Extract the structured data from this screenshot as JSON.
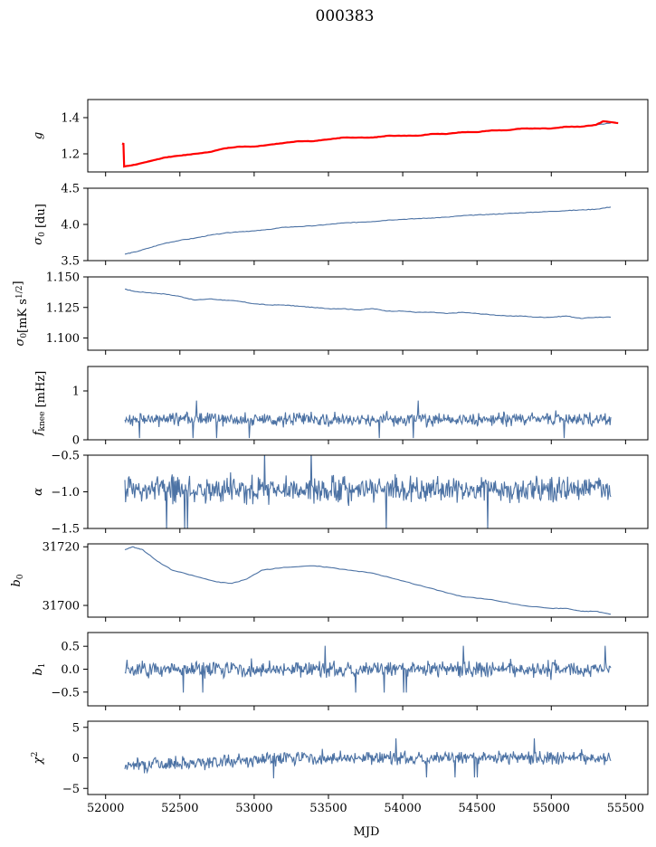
{
  "figure": {
    "title": "000383",
    "xlabel": "MJD"
  },
  "colors": {
    "series": "#4c72a4",
    "fit": "#ff0000",
    "axis": "#000000"
  },
  "chart_data": [
    {
      "type": "line",
      "ylabel": "g",
      "ylim": [
        1.1,
        1.5
      ],
      "yticks": [
        1.2,
        1.4
      ],
      "ytick_labels": [
        "1.2",
        "1.4"
      ],
      "series": [
        {
          "color": "#4c72a4",
          "values": [
            [
              52120,
              1.13
            ],
            [
              52200,
              1.14
            ],
            [
              52300,
              1.16
            ],
            [
              52400,
              1.18
            ],
            [
              52500,
              1.19
            ],
            [
              52600,
              1.2
            ],
            [
              52700,
              1.21
            ],
            [
              52800,
              1.23
            ],
            [
              52900,
              1.24
            ],
            [
              53000,
              1.24
            ],
            [
              53100,
              1.25
            ],
            [
              53200,
              1.26
            ],
            [
              53300,
              1.27
            ],
            [
              53400,
              1.27
            ],
            [
              53500,
              1.28
            ],
            [
              53600,
              1.29
            ],
            [
              53700,
              1.29
            ],
            [
              53800,
              1.29
            ],
            [
              53900,
              1.3
            ],
            [
              54000,
              1.3
            ],
            [
              54100,
              1.3
            ],
            [
              54200,
              1.31
            ],
            [
              54300,
              1.31
            ],
            [
              54400,
              1.32
            ],
            [
              54500,
              1.32
            ],
            [
              54600,
              1.33
            ],
            [
              54700,
              1.33
            ],
            [
              54800,
              1.34
            ],
            [
              54900,
              1.34
            ],
            [
              55000,
              1.34
            ],
            [
              55100,
              1.35
            ],
            [
              55200,
              1.35
            ],
            [
              55300,
              1.36
            ],
            [
              55400,
              1.37
            ]
          ]
        },
        {
          "color": "#ff0000",
          "values": [
            [
              52115,
              1.25
            ],
            [
              52120,
              1.26
            ],
            [
              52125,
              1.13
            ],
            [
              52200,
              1.14
            ],
            [
              52300,
              1.16
            ],
            [
              52400,
              1.18
            ],
            [
              52500,
              1.19
            ],
            [
              52600,
              1.2
            ],
            [
              52700,
              1.21
            ],
            [
              52800,
              1.23
            ],
            [
              52900,
              1.24
            ],
            [
              53000,
              1.24
            ],
            [
              53100,
              1.25
            ],
            [
              53200,
              1.26
            ],
            [
              53300,
              1.27
            ],
            [
              53400,
              1.27
            ],
            [
              53500,
              1.28
            ],
            [
              53600,
              1.29
            ],
            [
              53700,
              1.29
            ],
            [
              53800,
              1.29
            ],
            [
              53900,
              1.3
            ],
            [
              54000,
              1.3
            ],
            [
              54100,
              1.3
            ],
            [
              54200,
              1.31
            ],
            [
              54300,
              1.31
            ],
            [
              54400,
              1.32
            ],
            [
              54500,
              1.32
            ],
            [
              54600,
              1.33
            ],
            [
              54700,
              1.33
            ],
            [
              54800,
              1.34
            ],
            [
              54900,
              1.34
            ],
            [
              55000,
              1.34
            ],
            [
              55100,
              1.35
            ],
            [
              55200,
              1.35
            ],
            [
              55300,
              1.36
            ],
            [
              55350,
              1.38
            ],
            [
              55450,
              1.37
            ]
          ]
        }
      ]
    },
    {
      "type": "line",
      "ylabel": "σ0 [du]",
      "ylim": [
        3.5,
        4.5
      ],
      "yticks": [
        3.5,
        4.0,
        4.5
      ],
      "ytick_labels": [
        "3.5",
        "4.0",
        "4.5"
      ],
      "series": [
        {
          "color": "#4c72a4",
          "values": [
            [
              52130,
              3.59
            ],
            [
              52200,
              3.62
            ],
            [
              52300,
              3.68
            ],
            [
              52400,
              3.74
            ],
            [
              52500,
              3.78
            ],
            [
              52600,
              3.81
            ],
            [
              52700,
              3.85
            ],
            [
              52800,
              3.88
            ],
            [
              52900,
              3.9
            ],
            [
              53000,
              3.91
            ],
            [
              53100,
              3.93
            ],
            [
              53200,
              3.96
            ],
            [
              53300,
              3.97
            ],
            [
              53400,
              3.98
            ],
            [
              53500,
              4.0
            ],
            [
              53600,
              4.02
            ],
            [
              53700,
              4.03
            ],
            [
              53800,
              4.04
            ],
            [
              53900,
              4.06
            ],
            [
              54000,
              4.07
            ],
            [
              54100,
              4.08
            ],
            [
              54200,
              4.09
            ],
            [
              54300,
              4.1
            ],
            [
              54400,
              4.12
            ],
            [
              54500,
              4.13
            ],
            [
              54600,
              4.14
            ],
            [
              54700,
              4.15
            ],
            [
              54800,
              4.16
            ],
            [
              54900,
              4.17
            ],
            [
              55000,
              4.18
            ],
            [
              55100,
              4.19
            ],
            [
              55200,
              4.2
            ],
            [
              55300,
              4.21
            ],
            [
              55400,
              4.24
            ]
          ]
        }
      ]
    },
    {
      "type": "line",
      "ylabel": "σ0[mK s^1/2]",
      "ylim": [
        1.09,
        1.15
      ],
      "yticks": [
        1.1,
        1.125,
        1.15
      ],
      "ytick_labels": [
        "1.100",
        "1.125",
        "1.150"
      ],
      "series": [
        {
          "color": "#4c72a4",
          "values": [
            [
              52130,
              1.14
            ],
            [
              52200,
              1.138
            ],
            [
              52300,
              1.137
            ],
            [
              52400,
              1.136
            ],
            [
              52500,
              1.134
            ],
            [
              52600,
              1.131
            ],
            [
              52700,
              1.132
            ],
            [
              52800,
              1.131
            ],
            [
              52900,
              1.13
            ],
            [
              53000,
              1.128
            ],
            [
              53100,
              1.127
            ],
            [
              53200,
              1.127
            ],
            [
              53300,
              1.126
            ],
            [
              53400,
              1.125
            ],
            [
              53500,
              1.124
            ],
            [
              53600,
              1.124
            ],
            [
              53700,
              1.123
            ],
            [
              53800,
              1.124
            ],
            [
              53900,
              1.122
            ],
            [
              54000,
              1.122
            ],
            [
              54100,
              1.121
            ],
            [
              54200,
              1.121
            ],
            [
              54300,
              1.12
            ],
            [
              54400,
              1.121
            ],
            [
              54500,
              1.12
            ],
            [
              54600,
              1.119
            ],
            [
              54700,
              1.118
            ],
            [
              54800,
              1.118
            ],
            [
              54900,
              1.117
            ],
            [
              55000,
              1.117
            ],
            [
              55100,
              1.118
            ],
            [
              55200,
              1.116
            ],
            [
              55300,
              1.117
            ],
            [
              55400,
              1.117
            ]
          ]
        }
      ]
    },
    {
      "type": "line",
      "ylabel": "f_knee [mHz]",
      "ylim": [
        0,
        1.5
      ],
      "yticks": [
        0,
        1
      ],
      "ytick_labels": [
        "0",
        "1"
      ],
      "series": [
        {
          "color": "#4c72a4",
          "noise": {
            "x_start": 52130,
            "x_end": 55400,
            "mean": 0.42,
            "amplitude": 0.12,
            "n": 700,
            "seed": 4
          }
        }
      ]
    },
    {
      "type": "line",
      "ylabel": "α",
      "ylim": [
        -1.5,
        -0.5
      ],
      "yticks": [
        -1.5,
        -1.0,
        -0.5
      ],
      "ytick_labels": [
        "−1.5",
        "−1.0",
        "−0.5"
      ],
      "series": [
        {
          "color": "#4c72a4",
          "noise": {
            "x_start": 52130,
            "x_end": 55400,
            "mean": -0.97,
            "amplitude": 0.17,
            "n": 700,
            "seed": 5
          }
        }
      ]
    },
    {
      "type": "line",
      "ylabel": "b0",
      "ylim": [
        31696,
        31721
      ],
      "yticks": [
        31700,
        31720
      ],
      "ytick_labels": [
        "31700",
        "31720"
      ],
      "series": [
        {
          "color": "#4c72a4",
          "values": [
            [
              52130,
              31719
            ],
            [
              52180,
              31720
            ],
            [
              52250,
              31719
            ],
            [
              52350,
              31715
            ],
            [
              52450,
              31712
            ],
            [
              52600,
              31710
            ],
            [
              52750,
              31708
            ],
            [
              52850,
              31707.5
            ],
            [
              52950,
              31709
            ],
            [
              53050,
              31712
            ],
            [
              53200,
              31713
            ],
            [
              53400,
              31713.5
            ],
            [
              53500,
              31713
            ],
            [
              53650,
              31712
            ],
            [
              53800,
              31711
            ],
            [
              53950,
              31709
            ],
            [
              54100,
              31707
            ],
            [
              54250,
              31705
            ],
            [
              54400,
              31703
            ],
            [
              54600,
              31702
            ],
            [
              54800,
              31700
            ],
            [
              55000,
              31699
            ],
            [
              55100,
              31699
            ],
            [
              55200,
              31698
            ],
            [
              55300,
              31698
            ],
            [
              55400,
              31697
            ]
          ]
        }
      ]
    },
    {
      "type": "line",
      "ylabel": "b1",
      "ylim": [
        -0.8,
        0.8
      ],
      "yticks": [
        -0.5,
        0.0,
        0.5
      ],
      "ytick_labels": [
        "−0.5",
        "0.0",
        "0.5"
      ],
      "series": [
        {
          "color": "#4c72a4",
          "noise": {
            "x_start": 52130,
            "x_end": 55400,
            "mean": 0.0,
            "amplitude": 0.16,
            "n": 700,
            "seed": 6
          }
        }
      ]
    },
    {
      "type": "line",
      "ylabel": "χ2",
      "ylim": [
        -6,
        6
      ],
      "yticks": [
        -5,
        0,
        5
      ],
      "ytick_labels": [
        "−5",
        "0",
        "5"
      ],
      "xticks": [
        52000,
        52500,
        53000,
        53500,
        54000,
        54500,
        55000,
        55500
      ],
      "xtick_labels": [
        "52000",
        "52500",
        "53000",
        "53500",
        "54000",
        "54500",
        "55000",
        "55500"
      ],
      "series": [
        {
          "color": "#4c72a4",
          "noise": {
            "x_start": 52130,
            "x_end": 55400,
            "mean": 0.0,
            "amplitude": 1.0,
            "trend_start": -1.2,
            "n": 700,
            "seed": 7
          }
        }
      ]
    }
  ],
  "x_axis": {
    "xlim": [
      51880,
      55650
    ],
    "xticks": [
      52000,
      52500,
      53000,
      53500,
      54000,
      54500,
      55000,
      55500
    ]
  }
}
